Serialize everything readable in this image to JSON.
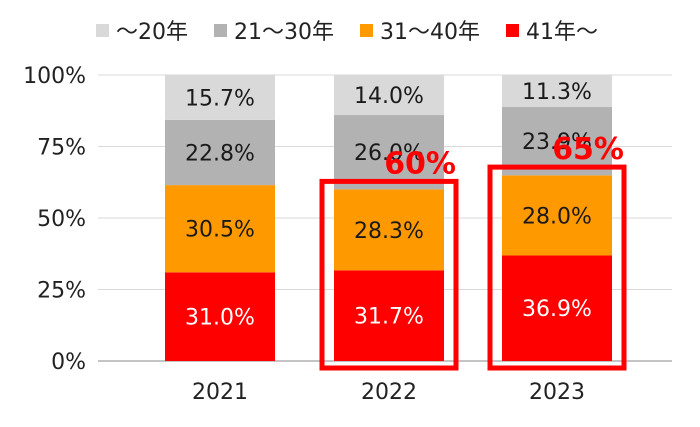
{
  "legend": {
    "items": [
      {
        "label": "～20年",
        "color": "#d9d9d9"
      },
      {
        "label": "21～30年",
        "color": "#b2b2b2"
      },
      {
        "label": "31～40年",
        "color": "#ff9900"
      },
      {
        "label": "41年～",
        "color": "#ff0000"
      }
    ]
  },
  "chart_data": {
    "type": "bar",
    "stacked": true,
    "categories": [
      "2021",
      "2022",
      "2023"
    ],
    "series": [
      {
        "name": "41年～",
        "color": "#ff0000",
        "label_color": "#ffffff",
        "values": [
          31.0,
          31.7,
          36.9
        ],
        "labels": [
          "31.0%",
          "31.7%",
          "36.9%"
        ]
      },
      {
        "name": "31～40年",
        "color": "#ff9900",
        "label_color": "#1a1a1a",
        "values": [
          30.5,
          28.3,
          28.0
        ],
        "labels": [
          "30.5%",
          "28.3%",
          "28.0%"
        ]
      },
      {
        "name": "21～30年",
        "color": "#b2b2b2",
        "label_color": "#1a1a1a",
        "values": [
          22.8,
          26.0,
          23.9
        ],
        "labels": [
          "22.8%",
          "26.0%",
          "23.9%"
        ]
      },
      {
        "name": "～20年",
        "color": "#d9d9d9",
        "label_color": "#1a1a1a",
        "values": [
          15.7,
          14.0,
          11.3
        ],
        "labels": [
          "15.7%",
          "14.0%",
          "11.3%"
        ]
      }
    ],
    "ylim": [
      0,
      100
    ],
    "yticks": [
      0,
      25,
      50,
      75,
      100
    ],
    "ytick_labels": [
      "0%",
      "25%",
      "50%",
      "75%",
      "100%"
    ],
    "grid": true,
    "legend_position": "top",
    "annotations": [
      {
        "category": "2022",
        "text": "60%",
        "highlight_from": 0,
        "highlight_to": 60,
        "color": "#ff0000"
      },
      {
        "category": "2023",
        "text": "65%",
        "highlight_from": 0,
        "highlight_to": 65,
        "color": "#ff0000"
      }
    ]
  }
}
